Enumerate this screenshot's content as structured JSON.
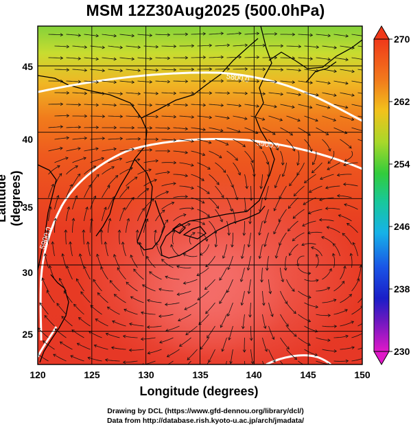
{
  "title": "MSM 12Z30Aug2025 (500.0hPa)",
  "axes": {
    "xlabel": "Longitude (degrees)",
    "ylabel": "Latitude  (degrees)",
    "xlim": [
      120,
      150
    ],
    "ylim": [
      22.5,
      48
    ],
    "xticks": [
      "120",
      "125",
      "130",
      "135",
      "140",
      "145",
      "150"
    ],
    "yticks": [
      "25",
      "30",
      "35",
      "40",
      "45"
    ]
  },
  "colorbar": {
    "range": [
      230,
      270
    ],
    "ticks": [
      "270",
      "262",
      "254",
      "246",
      "238",
      "230"
    ]
  },
  "contours": [
    {
      "label": "5800.0"
    },
    {
      "label": "5900.0"
    },
    {
      "label": "5900.0"
    }
  ],
  "credits": {
    "line1": "Drawing by DCL (https://www.gfd-dennou.org/library/dcl/)",
    "line2": "Data from http://database.rish.kyoto-u.ac.jp/arch/jmadata/"
  },
  "colors": {
    "warm": "#e63a1e",
    "hot": "#f26d5d",
    "mid": "#f07a18",
    "cool": "#8cd23c",
    "contour": "#ffffff"
  }
}
